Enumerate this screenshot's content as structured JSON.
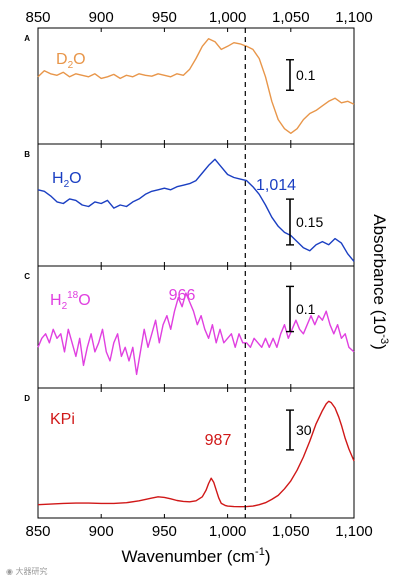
{
  "chart_data": {
    "type": "line",
    "x_axis": {
      "label": "Wavenumber (cm",
      "label_sup": "-1",
      "label_end": ")",
      "range": [
        850,
        1100
      ],
      "ticks": [
        850,
        900,
        950,
        1000,
        1050,
        1100
      ],
      "tick_labels": [
        "850",
        "900",
        "950",
        "1,000",
        "1,050",
        "1,100"
      ]
    },
    "y_axis": {
      "label": "Absorbance (10",
      "label_sup": "-3",
      "label_end": ")",
      "position": "right"
    },
    "reference_line": {
      "x": 1014,
      "style": "dashed"
    },
    "panels": [
      {
        "letter": "A",
        "label_main": "D",
        "label_sub": "2",
        "label_end": "O",
        "color": "#e8964a",
        "scale_bar": "0.1",
        "scale_value": 0.1,
        "peak_label": "",
        "x": [
          850,
          855,
          860,
          865,
          870,
          875,
          880,
          885,
          890,
          895,
          900,
          905,
          910,
          915,
          920,
          925,
          930,
          935,
          940,
          945,
          950,
          955,
          960,
          965,
          970,
          975,
          980,
          985,
          990,
          995,
          1000,
          1005,
          1010,
          1015,
          1020,
          1025,
          1030,
          1035,
          1040,
          1045,
          1050,
          1055,
          1060,
          1065,
          1070,
          1075,
          1080,
          1085,
          1090,
          1095,
          1100
        ],
        "y": [
          0.06,
          0.08,
          0.07,
          0.065,
          0.075,
          0.06,
          0.07,
          0.065,
          0.06,
          0.07,
          0.055,
          0.06,
          0.068,
          0.055,
          0.065,
          0.06,
          0.07,
          0.065,
          0.062,
          0.07,
          0.065,
          0.06,
          0.07,
          0.065,
          0.085,
          0.12,
          0.16,
          0.185,
          0.175,
          0.15,
          0.16,
          0.172,
          0.168,
          0.16,
          0.15,
          0.12,
          0.06,
          -0.02,
          -0.08,
          -0.11,
          -0.125,
          -0.11,
          -0.08,
          -0.06,
          -0.05,
          -0.035,
          -0.02,
          -0.01,
          -0.025,
          -0.02,
          -0.03
        ],
        "ylim": [
          -0.16,
          0.22
        ]
      },
      {
        "letter": "B",
        "label_main": "H",
        "label_sub": "2",
        "label_end": "O",
        "color": "#1b3fc2",
        "scale_bar": "0.15",
        "scale_value": 0.15,
        "peak_label": "1,014",
        "x": [
          850,
          855,
          860,
          865,
          870,
          875,
          880,
          885,
          890,
          895,
          900,
          905,
          910,
          915,
          920,
          925,
          930,
          935,
          940,
          945,
          950,
          955,
          960,
          965,
          970,
          975,
          980,
          985,
          990,
          995,
          1000,
          1005,
          1010,
          1015,
          1020,
          1025,
          1030,
          1035,
          1040,
          1045,
          1050,
          1055,
          1060,
          1065,
          1070,
          1075,
          1080,
          1085,
          1090,
          1095,
          1100
        ],
        "y": [
          0.05,
          0.045,
          0.03,
          0.01,
          0.005,
          0.02,
          0.015,
          0.0,
          -0.005,
          0.01,
          0.005,
          0.015,
          -0.01,
          0.0,
          -0.005,
          0.01,
          0.02,
          0.035,
          0.045,
          0.05,
          0.055,
          0.05,
          0.06,
          0.065,
          0.07,
          0.08,
          0.105,
          0.13,
          0.15,
          0.125,
          0.1,
          0.09,
          0.085,
          0.08,
          0.06,
          0.035,
          0.0,
          -0.04,
          -0.07,
          -0.09,
          -0.1,
          -0.12,
          -0.14,
          -0.15,
          -0.13,
          -0.12,
          -0.13,
          -0.11,
          -0.125,
          -0.16,
          -0.185
        ],
        "ylim": [
          -0.2,
          0.2
        ]
      },
      {
        "letter": "C",
        "label_main": "H",
        "label_sub": "2",
        "label_sup": "18",
        "label_end": "O",
        "color": "#e040e0",
        "scale_bar": "0.1",
        "scale_value": 0.1,
        "peak_label": "966",
        "x": [
          850,
          853,
          856,
          859,
          862,
          865,
          868,
          871,
          874,
          877,
          880,
          883,
          886,
          889,
          892,
          895,
          898,
          901,
          904,
          907,
          910,
          913,
          916,
          919,
          922,
          925,
          928,
          931,
          934,
          937,
          940,
          943,
          946,
          949,
          952,
          955,
          958,
          961,
          964,
          967,
          970,
          973,
          976,
          979,
          982,
          985,
          988,
          991,
          994,
          997,
          1000,
          1003,
          1006,
          1009,
          1012,
          1015,
          1018,
          1021,
          1024,
          1027,
          1030,
          1033,
          1036,
          1039,
          1042,
          1045,
          1048,
          1051,
          1054,
          1057,
          1060,
          1063,
          1066,
          1069,
          1072,
          1075,
          1078,
          1081,
          1084,
          1087,
          1090,
          1093,
          1096,
          1100
        ],
        "y": [
          -0.02,
          0.0,
          0.01,
          -0.01,
          0.02,
          0.0,
          0.01,
          -0.03,
          0.02,
          -0.01,
          -0.04,
          0.0,
          -0.06,
          -0.02,
          0.01,
          -0.03,
          -0.01,
          0.02,
          -0.03,
          -0.05,
          -0.01,
          0.01,
          -0.04,
          -0.02,
          -0.05,
          -0.02,
          -0.08,
          -0.03,
          0.02,
          -0.02,
          0.01,
          0.04,
          -0.01,
          0.03,
          0.05,
          0.02,
          0.06,
          0.09,
          0.07,
          0.1,
          0.08,
          0.06,
          0.03,
          0.05,
          0.02,
          0.0,
          0.03,
          -0.01,
          0.02,
          -0.01,
          0.0,
          0.01,
          -0.02,
          0.01,
          -0.01,
          -0.01,
          -0.02,
          0.0,
          -0.01,
          -0.02,
          0.0,
          -0.02,
          0.0,
          -0.02,
          0.01,
          0.03,
          0.0,
          0.02,
          0.04,
          0.02,
          0.01,
          0.03,
          0.05,
          0.03,
          0.05,
          0.04,
          0.06,
          0.03,
          0.01,
          0.03,
          0.0,
          0.01,
          -0.02,
          -0.03
        ],
        "ylim": [
          -0.11,
          0.16
        ]
      },
      {
        "letter": "D",
        "label_main": "KPi",
        "label_sub": "",
        "label_end": "",
        "color": "#d01818",
        "scale_bar": "30",
        "scale_value": 30,
        "peak_label": "987",
        "x": [
          850,
          860,
          870,
          880,
          890,
          900,
          910,
          920,
          930,
          940,
          945,
          950,
          955,
          960,
          965,
          970,
          975,
          980,
          983,
          985,
          987,
          989,
          991,
          993,
          995,
          998,
          1000,
          1005,
          1010,
          1015,
          1020,
          1025,
          1030,
          1035,
          1040,
          1045,
          1050,
          1055,
          1060,
          1065,
          1070,
          1075,
          1078,
          1080,
          1082,
          1085,
          1088,
          1090,
          1093,
          1096,
          1100
        ],
        "y": [
          2,
          2.5,
          3,
          3.2,
          3.2,
          3,
          3,
          3.5,
          5,
          7,
          8,
          7.5,
          6.5,
          5.2,
          4.5,
          4.2,
          5,
          8,
          13,
          18,
          22,
          19,
          13,
          7,
          3,
          1.5,
          1,
          0.6,
          0.5,
          0.6,
          1,
          2,
          3.5,
          6,
          9,
          14,
          20,
          28,
          38,
          50,
          63,
          73,
          78,
          80,
          79,
          75,
          68,
          62,
          52,
          44,
          35
        ],
        "ylim": [
          -8,
          90
        ]
      }
    ]
  }
}
